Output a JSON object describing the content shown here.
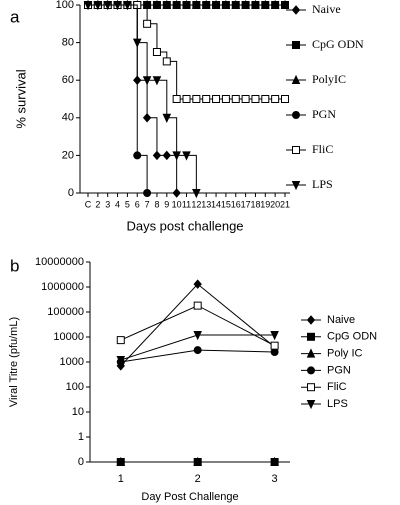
{
  "chart_data": [
    {
      "type": "step",
      "panel_label": "a",
      "step": true,
      "ylabel": "% survival",
      "xlabel": "Days post challenge",
      "categories": [
        "C",
        "2",
        "3",
        "4",
        "5",
        "6",
        "7",
        "8",
        "9",
        "10",
        "11",
        "12",
        "13",
        "14",
        "15",
        "16",
        "17",
        "18",
        "19",
        "20",
        "21"
      ],
      "ylim": [
        0,
        100
      ],
      "yticks": [
        0,
        20,
        40,
        60,
        80,
        100
      ],
      "series": [
        {
          "name": "Naive",
          "color": "#000000",
          "marker": "diamond",
          "values": [
            100,
            100,
            100,
            100,
            100,
            60,
            40,
            20,
            20,
            0,
            null,
            null,
            null,
            null,
            null,
            null,
            null,
            null,
            null,
            null,
            null
          ]
        },
        {
          "name": "CpG ODN",
          "color": "#000000",
          "marker": "square",
          "values": [
            100,
            100,
            100,
            100,
            100,
            100,
            100,
            100,
            100,
            100,
            100,
            100,
            100,
            100,
            100,
            100,
            100,
            100,
            100,
            100,
            100
          ]
        },
        {
          "name": "PolyIC",
          "color": "#000000",
          "marker": "triangle",
          "values": [
            100,
            100,
            100,
            100,
            100,
            100,
            100,
            100,
            100,
            100,
            100,
            100,
            100,
            100,
            100,
            100,
            100,
            100,
            100,
            100,
            100
          ]
        },
        {
          "name": "PGN",
          "color": "#000000",
          "marker": "circle",
          "values": [
            100,
            100,
            100,
            100,
            100,
            20,
            0,
            null,
            null,
            null,
            null,
            null,
            null,
            null,
            null,
            null,
            null,
            null,
            null,
            null,
            null
          ]
        },
        {
          "name": "FliC",
          "color": "#000000",
          "marker": "open-square",
          "values": [
            100,
            100,
            100,
            100,
            100,
            100,
            90,
            75,
            70,
            50,
            50,
            50,
            50,
            50,
            50,
            50,
            50,
            50,
            50,
            50,
            50
          ]
        },
        {
          "name": "LPS",
          "color": "#000000",
          "marker": "down-triangle",
          "values": [
            100,
            100,
            100,
            100,
            100,
            80,
            60,
            60,
            40,
            20,
            20,
            0,
            null,
            null,
            null,
            null,
            null,
            null,
            null,
            null,
            null
          ]
        }
      ]
    },
    {
      "type": "line",
      "panel_label": "b",
      "log_scale": true,
      "ylabel": "Viral Titre (pfu/mL)",
      "xlabel": "Day Post Challenge",
      "x": [
        1,
        2,
        3
      ],
      "xlim": [
        0.6,
        3.2
      ],
      "xticks": [
        1,
        2,
        3
      ],
      "ylim": [
        0,
        10000000
      ],
      "yticks": [
        0,
        1,
        10,
        100,
        1000,
        10000,
        100000,
        1000000,
        10000000
      ],
      "series": [
        {
          "name": "Naive",
          "color": "#000000",
          "marker": "diamond",
          "values": [
            700,
            1300000,
            4000
          ]
        },
        {
          "name": "CpG ODN",
          "color": "#000000",
          "marker": "square",
          "values": [
            0,
            0,
            0
          ]
        },
        {
          "name": "Poly IC",
          "color": "#000000",
          "marker": "triangle",
          "values": [
            0,
            0,
            0
          ]
        },
        {
          "name": "PGN",
          "color": "#000000",
          "marker": "circle",
          "values": [
            1000,
            3000,
            2500
          ]
        },
        {
          "name": "FliC",
          "color": "#000000",
          "marker": "open-square",
          "values": [
            7500,
            180000,
            4500
          ]
        },
        {
          "name": "LPS",
          "color": "#000000",
          "marker": "down-triangle",
          "values": [
            1200,
            12000,
            12000
          ]
        }
      ]
    }
  ]
}
